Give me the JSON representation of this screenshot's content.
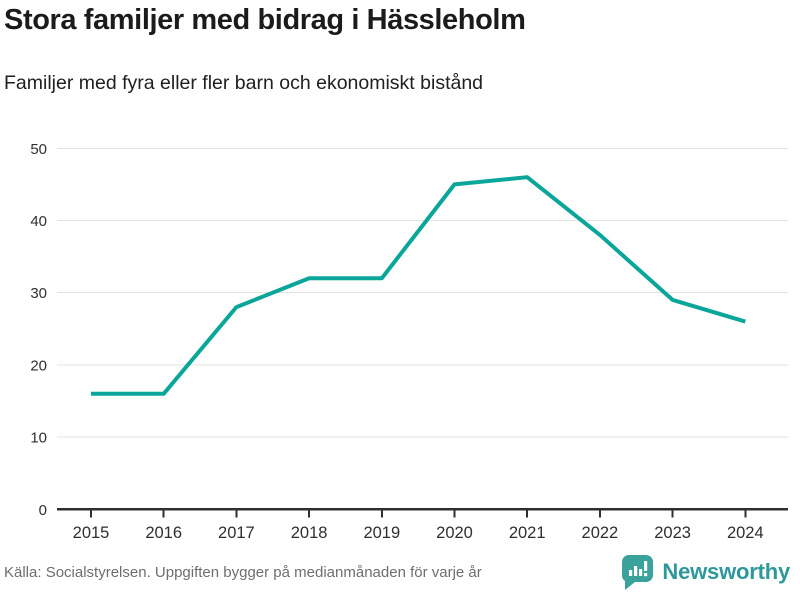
{
  "header": {
    "title": "Stora familjer med bidrag i Hässleholm",
    "subtitle": "Familjer med fyra eller fler barn och ekonomiskt bistånd"
  },
  "chart_data": {
    "type": "line",
    "title": "Stora familjer med bidrag i Hässleholm",
    "subtitle": "Familjer med fyra eller fler barn och ekonomiskt bistånd",
    "x": [
      2015,
      2016,
      2017,
      2018,
      2019,
      2020,
      2021,
      2022,
      2023,
      2024
    ],
    "values": [
      16,
      16,
      28,
      32,
      32,
      45,
      46,
      38,
      29,
      26
    ],
    "ylim": [
      0,
      50
    ],
    "yticks": [
      0,
      10,
      20,
      30,
      40,
      50
    ],
    "grid": "horizontal",
    "legend": "none",
    "line_color": "#0aa69a"
  },
  "colors": {
    "line": "#0aa69a",
    "gridline": "#e3e3e3",
    "axis": "#2f2f2f",
    "tick_label": "#2f2f2f",
    "source_text": "#6e6e6e",
    "brand_text": "#2e989a",
    "logo_bubble": "#3aa29b"
  },
  "footer": {
    "source": "Källa: Socialstyrelsen. Uppgiften bygger på medianmånaden för varje år",
    "brand": "Newsworthy"
  },
  "icons": {
    "brand_logo": "speech-bubble-bar-chart-icon"
  }
}
